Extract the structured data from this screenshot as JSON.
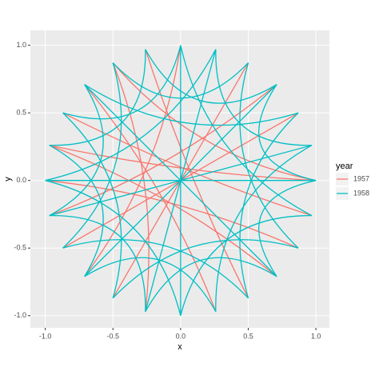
{
  "chart_data": {
    "type": "arc",
    "xlabel": "x",
    "ylabel": "y",
    "legend_title": "year",
    "xlim": [
      -1.11,
      1.1
    ],
    "ylim": [
      -1.09,
      1.11
    ],
    "xticks": [
      {
        "value": -1,
        "label": "-1.0"
      },
      {
        "value": -0.5,
        "label": "-0.5"
      },
      {
        "value": 0,
        "label": "0.0"
      },
      {
        "value": 0.5,
        "label": "0.5"
      },
      {
        "value": 1,
        "label": "1.0"
      }
    ],
    "yticks": [
      {
        "value": -1,
        "label": "-1.0"
      },
      {
        "value": -0.5,
        "label": "-0.5"
      },
      {
        "value": 0,
        "label": "0.0"
      },
      {
        "value": 0.5,
        "label": "0.5"
      },
      {
        "value": 1,
        "label": "1.0"
      }
    ],
    "grid": true,
    "legend": "right",
    "series": [
      {
        "name": "1957",
        "color": "#F8766D",
        "x": [
          0.87,
          0.5,
          -0.26,
          -0.87,
          -0.97,
          -1,
          -0.97,
          -0.71,
          -0.26,
          0.26,
          0.71,
          1
        ],
        "y": [
          0.5,
          0.87,
          0.97,
          0.5,
          0.26,
          0,
          -0.26,
          -0.71,
          -0.97,
          -0.97,
          -0.71,
          0
        ],
        "xend": [
          -0.87,
          -0.5,
          0.5,
          0.97,
          1,
          0.87,
          0.71,
          0,
          -0.5,
          -0.71,
          -0.97,
          -0.5
        ],
        "yend": [
          -0.5,
          -0.87,
          -0.87,
          -0.26,
          0,
          -0.5,
          0.71,
          1,
          0.87,
          0.71,
          0.26,
          0.87
        ]
      },
      {
        "name": "1958",
        "color": "#00BFC4",
        "x": [
          1,
          0.97,
          0.87,
          0.71,
          0.5,
          0.26,
          0,
          -0.26,
          -0.5,
          -0.71,
          -0.87,
          -0.97,
          -1,
          -0.97,
          -0.87,
          -0.71,
          -0.5,
          -0.26,
          0,
          0.26,
          0.5,
          0.71,
          0.87,
          0.97,
          1,
          0,
          0.71,
          -0.71,
          0.97,
          0.26
        ],
        "y": [
          0,
          0.26,
          0.5,
          0.71,
          0.87,
          0.97,
          1,
          0.97,
          0.87,
          0.71,
          0.5,
          0.26,
          0,
          -0.26,
          -0.5,
          -0.71,
          -0.87,
          -0.97,
          -1,
          -0.97,
          -0.87,
          -0.71,
          -0.5,
          -0.26,
          0,
          1,
          0.71,
          0.71,
          0.26,
          0.97
        ],
        "xend": [
          0.71,
          0.26,
          -0.71,
          -0.26,
          -0.5,
          -1,
          -0.87,
          -0.97,
          -0.87,
          -0.97,
          -0.5,
          -0.71,
          0,
          -0.26,
          0.5,
          0.26,
          0.87,
          0.71,
          0.97,
          0.97,
          0.87,
          1,
          0.5,
          0,
          -1,
          0,
          -0.71,
          0.71,
          -0.97,
          -0.26
        ],
        "yend": [
          0.71,
          0.97,
          0.71,
          0.97,
          0.87,
          0,
          0.5,
          0.26,
          -0.5,
          -0.26,
          -0.87,
          -0.71,
          -1,
          -0.97,
          -0.87,
          -0.97,
          -0.5,
          -0.71,
          -0.26,
          0.26,
          0.5,
          0,
          0.87,
          1,
          0,
          -1,
          -0.71,
          -0.71,
          -0.26,
          -0.97
        ]
      }
    ]
  }
}
